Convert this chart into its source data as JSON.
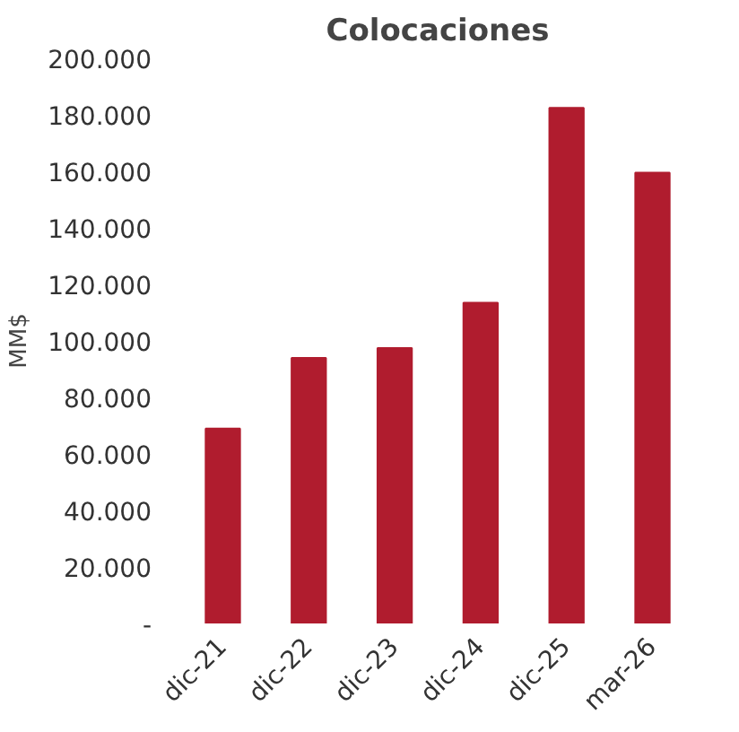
{
  "chart_data": {
    "type": "bar",
    "title": "Colocaciones",
    "ylabel": "MM$",
    "categories": [
      "dic-21",
      "dic-22",
      "dic-23",
      "dic-24",
      "dic-25",
      "mar-26"
    ],
    "values": [
      69000,
      94000,
      97500,
      113500,
      182500,
      159500
    ],
    "color": "#b01c2e",
    "ylim": [
      0,
      200000
    ],
    "yticks": [
      {
        "value": 0,
        "label": "-"
      },
      {
        "value": 20000,
        "label": "20.000"
      },
      {
        "value": 40000,
        "label": "40.000"
      },
      {
        "value": 60000,
        "label": "60.000"
      },
      {
        "value": 80000,
        "label": "80.000"
      },
      {
        "value": 100000,
        "label": "100.000"
      },
      {
        "value": 120000,
        "label": "120.000"
      },
      {
        "value": 140000,
        "label": "140.000"
      },
      {
        "value": 160000,
        "label": "160.000"
      },
      {
        "value": 180000,
        "label": "180.000"
      },
      {
        "value": 200000,
        "label": "200.000"
      }
    ],
    "grid": false
  }
}
